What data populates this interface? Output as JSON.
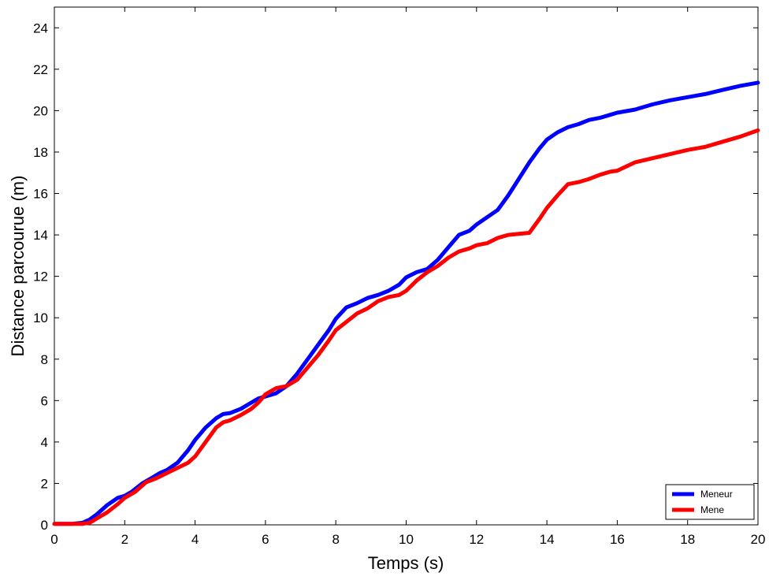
{
  "chart_data": {
    "type": "line",
    "title": "",
    "xlabel": "Temps (s)",
    "ylabel": "Distance parcourue (m)",
    "xlim": [
      0,
      20
    ],
    "ylim": [
      0,
      25
    ],
    "xticks": [
      0,
      2,
      4,
      6,
      8,
      10,
      12,
      14,
      16,
      18,
      20
    ],
    "yticks": [
      0,
      2,
      4,
      6,
      8,
      10,
      12,
      14,
      16,
      18,
      20,
      22,
      24
    ],
    "grid": false,
    "legend_position": "bottom-right",
    "series": [
      {
        "name": "Meneur",
        "color": "#0000ff",
        "x": [
          0,
          0.5,
          0.8,
          1.0,
          1.2,
          1.5,
          1.8,
          2.0,
          2.2,
          2.5,
          2.8,
          3.0,
          3.2,
          3.5,
          3.8,
          4.0,
          4.3,
          4.6,
          4.8,
          5.0,
          5.3,
          5.6,
          5.8,
          6.0,
          6.3,
          6.6,
          6.9,
          7.2,
          7.5,
          7.8,
          8.0,
          8.3,
          8.6,
          8.9,
          9.2,
          9.5,
          9.8,
          10.0,
          10.3,
          10.6,
          10.9,
          11.2,
          11.5,
          11.8,
          12.0,
          12.3,
          12.6,
          12.9,
          13.2,
          13.5,
          13.8,
          14.0,
          14.3,
          14.6,
          14.9,
          15.2,
          15.5,
          15.8,
          16.0,
          16.5,
          17.0,
          17.5,
          18.0,
          18.5,
          19.0,
          19.5,
          20.0
        ],
        "y": [
          0.05,
          0.05,
          0.1,
          0.25,
          0.5,
          0.95,
          1.3,
          1.4,
          1.6,
          2.0,
          2.3,
          2.5,
          2.65,
          3.0,
          3.6,
          4.1,
          4.7,
          5.15,
          5.35,
          5.4,
          5.6,
          5.9,
          6.1,
          6.2,
          6.35,
          6.7,
          7.3,
          8.0,
          8.7,
          9.4,
          9.95,
          10.5,
          10.7,
          10.95,
          11.1,
          11.3,
          11.6,
          11.95,
          12.2,
          12.35,
          12.8,
          13.4,
          14.0,
          14.2,
          14.5,
          14.85,
          15.2,
          15.9,
          16.7,
          17.5,
          18.2,
          18.6,
          18.95,
          19.2,
          19.35,
          19.55,
          19.65,
          19.8,
          19.9,
          20.05,
          20.3,
          20.5,
          20.65,
          20.8,
          21.0,
          21.2,
          21.35
        ]
      },
      {
        "name": "Mene",
        "color": "#ff0000",
        "x": [
          0,
          0.5,
          0.8,
          1.0,
          1.2,
          1.5,
          1.8,
          2.0,
          2.3,
          2.6,
          2.9,
          3.2,
          3.5,
          3.8,
          4.0,
          4.3,
          4.6,
          4.8,
          5.0,
          5.3,
          5.6,
          5.8,
          6.0,
          6.3,
          6.6,
          6.9,
          7.2,
          7.5,
          7.8,
          8.0,
          8.3,
          8.6,
          8.9,
          9.2,
          9.5,
          9.8,
          10.0,
          10.3,
          10.6,
          10.9,
          11.2,
          11.5,
          11.8,
          12.0,
          12.3,
          12.6,
          12.9,
          13.2,
          13.5,
          13.8,
          14.0,
          14.3,
          14.6,
          14.9,
          15.2,
          15.5,
          15.8,
          16.0,
          16.5,
          17.0,
          17.5,
          18.0,
          18.5,
          19.0,
          19.5,
          20.0
        ],
        "y": [
          0.05,
          0.05,
          0.05,
          0.1,
          0.3,
          0.6,
          1.0,
          1.3,
          1.6,
          2.05,
          2.25,
          2.5,
          2.75,
          3.0,
          3.3,
          4.0,
          4.7,
          4.95,
          5.05,
          5.3,
          5.6,
          5.9,
          6.3,
          6.6,
          6.7,
          7.0,
          7.6,
          8.2,
          8.9,
          9.4,
          9.8,
          10.2,
          10.45,
          10.8,
          11.0,
          11.1,
          11.3,
          11.8,
          12.2,
          12.5,
          12.9,
          13.2,
          13.35,
          13.5,
          13.6,
          13.85,
          14.0,
          14.05,
          14.1,
          14.8,
          15.3,
          15.9,
          16.45,
          16.55,
          16.7,
          16.9,
          17.05,
          17.1,
          17.5,
          17.7,
          17.9,
          18.1,
          18.25,
          18.5,
          18.75,
          19.05
        ]
      }
    ]
  }
}
